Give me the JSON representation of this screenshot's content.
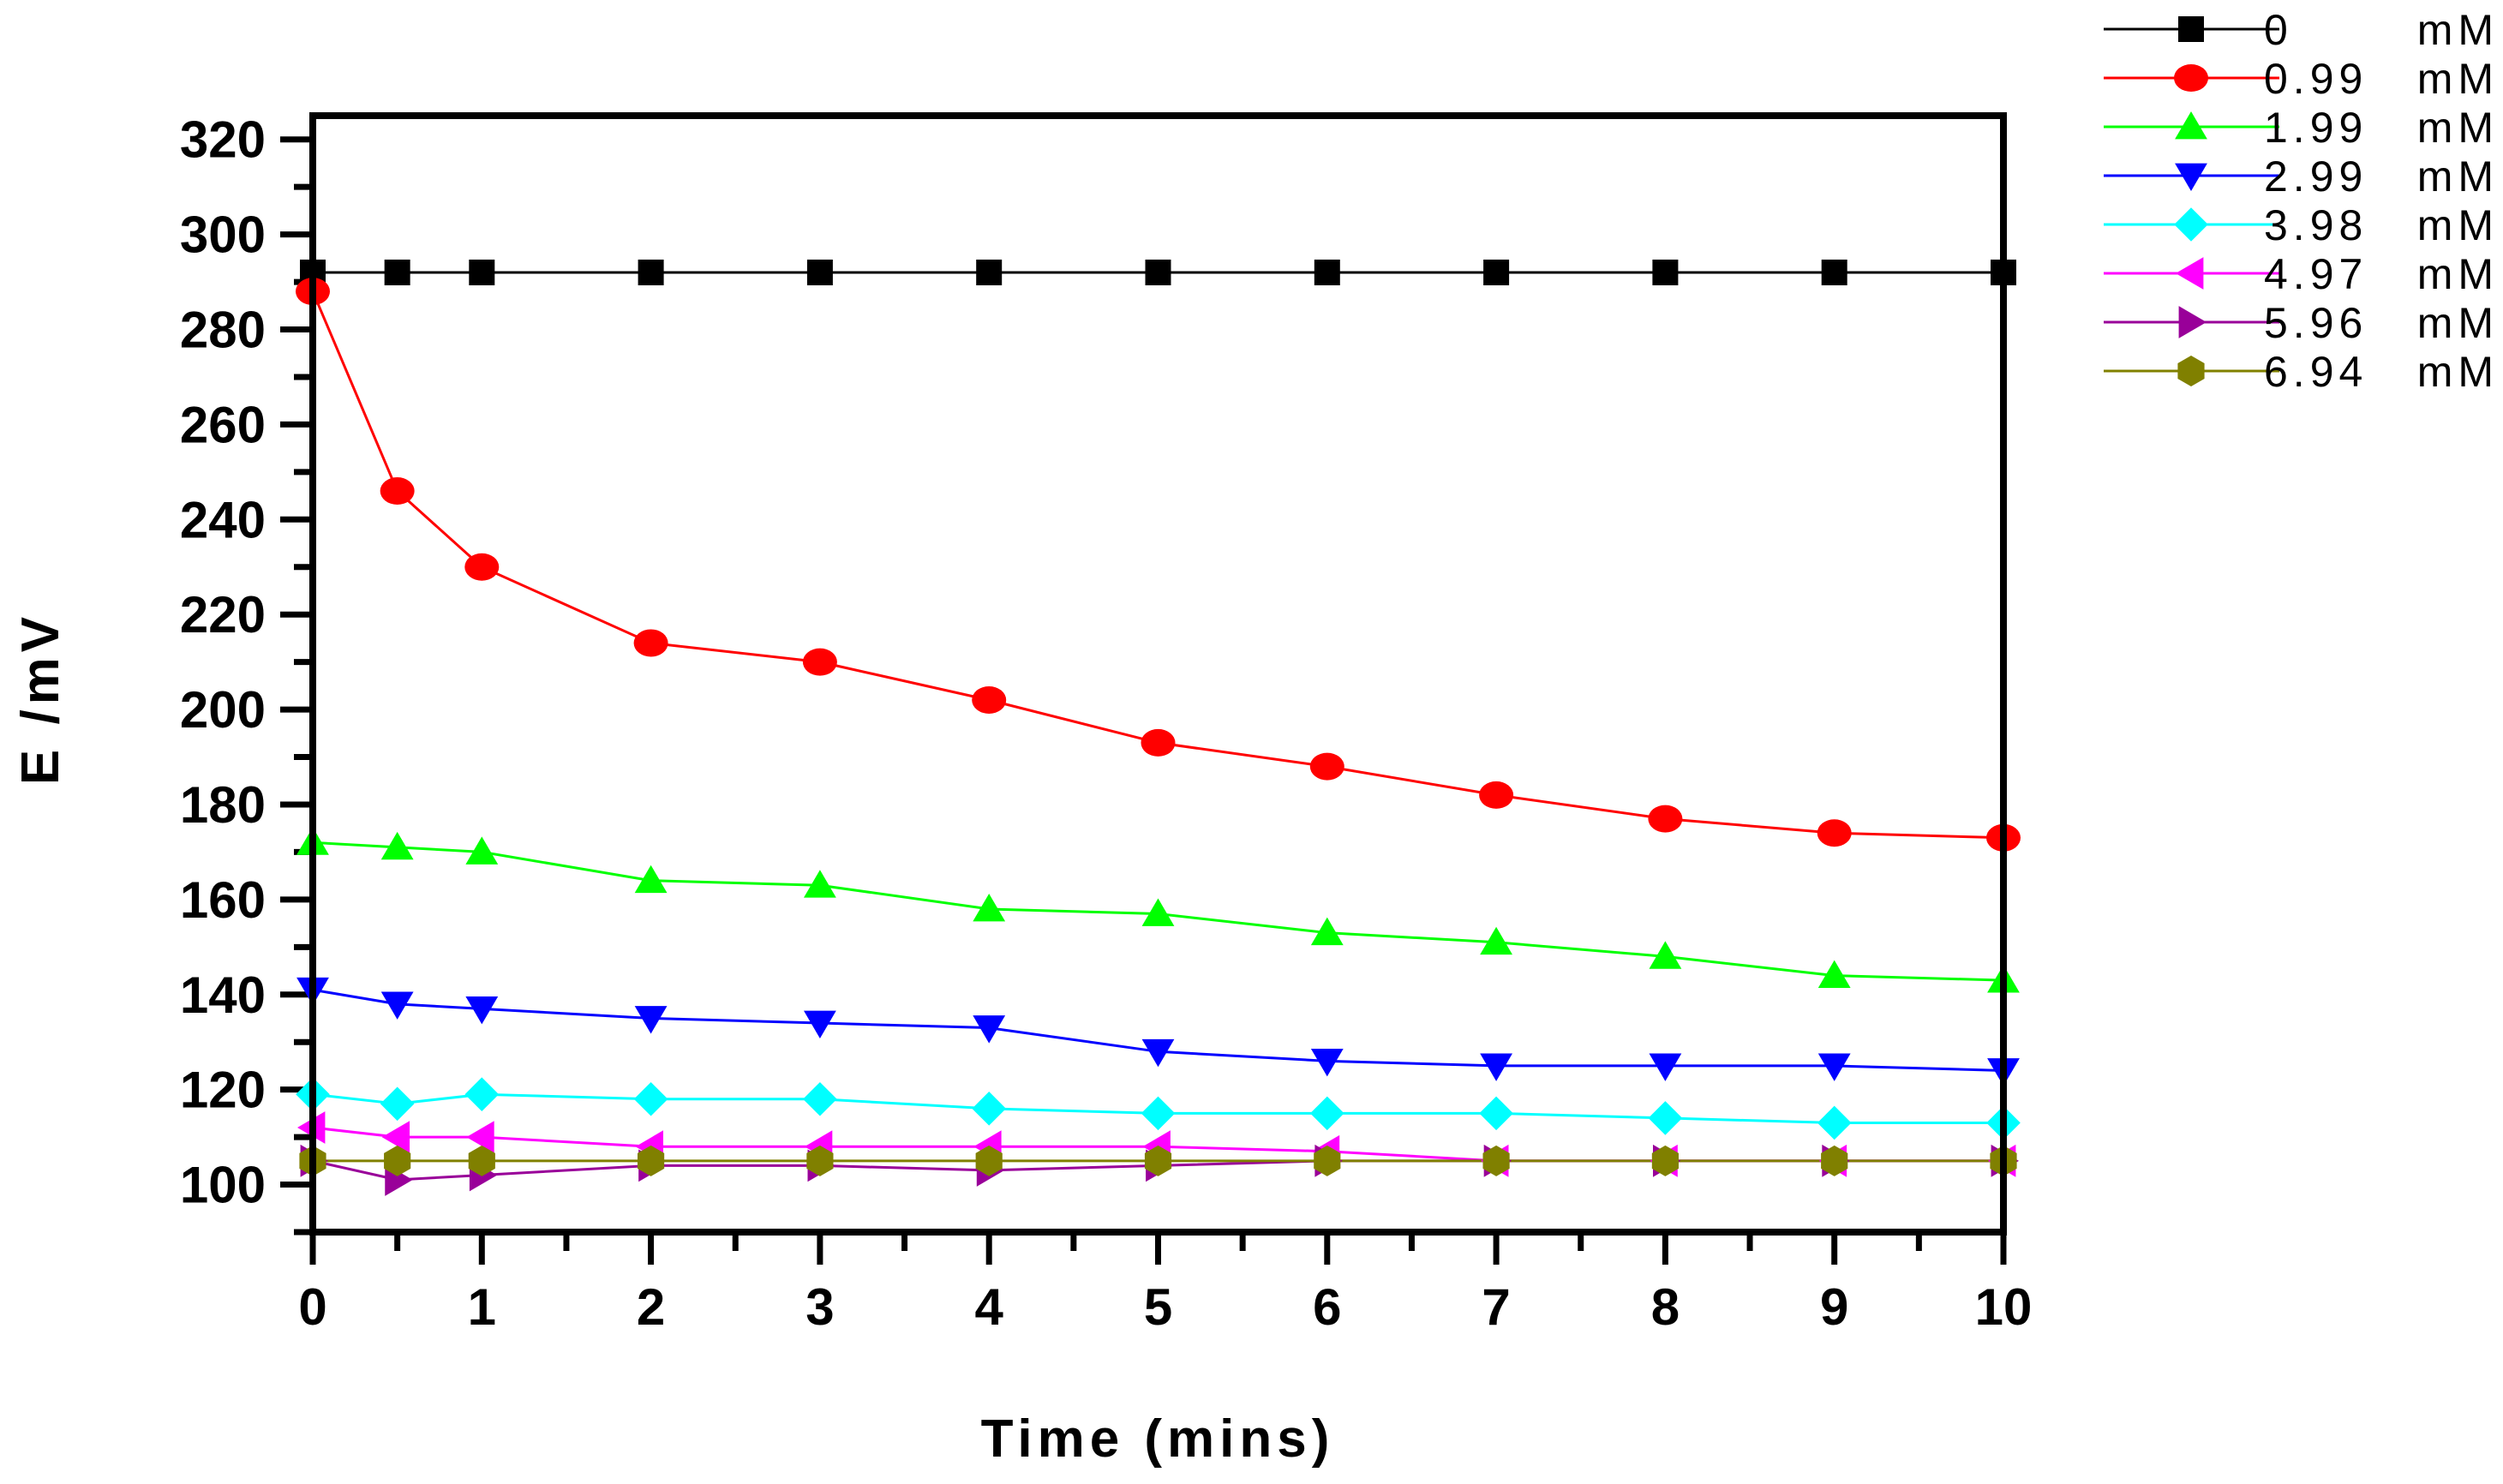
{
  "chart_data": {
    "type": "line",
    "title": "",
    "xlabel": "Time (mins)",
    "ylabel": "E /mV",
    "xlim": [
      0,
      10
    ],
    "ylim": [
      90,
      325
    ],
    "xticks": [
      0,
      1,
      2,
      3,
      4,
      5,
      6,
      7,
      8,
      9,
      10
    ],
    "yticks": [
      100,
      120,
      140,
      160,
      180,
      200,
      220,
      240,
      260,
      280,
      300,
      320
    ],
    "x": [
      0,
      0.5,
      1,
      2,
      3,
      4,
      5,
      6,
      7,
      8,
      9,
      10
    ],
    "legend_position": "top-right outside",
    "series": [
      {
        "name": "0 mM",
        "label_value": "0",
        "label_unit": "mM",
        "color": "#000000",
        "marker": "square",
        "values": [
          292,
          292,
          292,
          292,
          292,
          292,
          292,
          292,
          292,
          292,
          292,
          292
        ]
      },
      {
        "name": "0.99 mM",
        "label_value": "0.99",
        "label_unit": "mM",
        "color": "#ff0000",
        "marker": "circle",
        "values": [
          288,
          246,
          230,
          214,
          210,
          202,
          193,
          188,
          182,
          177,
          174,
          173
        ]
      },
      {
        "name": "1.99 mM",
        "label_value": "1.99",
        "label_unit": "mM",
        "color": "#00ff00",
        "marker": "triangle-up",
        "values": [
          172,
          171,
          170,
          164,
          163,
          158,
          157,
          153,
          151,
          148,
          144,
          143
        ]
      },
      {
        "name": "2.99 mM",
        "label_value": "2.99",
        "label_unit": "mM",
        "color": "#0000ff",
        "marker": "triangle-down",
        "values": [
          141,
          138,
          137,
          135,
          134,
          133,
          128,
          126,
          125,
          125,
          125,
          124
        ]
      },
      {
        "name": "3.98 mM",
        "label_value": "3.98",
        "label_unit": "mM",
        "color": "#00ffff",
        "marker": "diamond",
        "values": [
          119,
          117,
          119,
          118,
          118,
          116,
          115,
          115,
          115,
          114,
          113,
          113
        ]
      },
      {
        "name": "4.97 mM",
        "label_value": "4.97",
        "label_unit": "mM",
        "color": "#ff00ff",
        "marker": "triangle-left",
        "values": [
          112,
          110,
          110,
          108,
          108,
          108,
          108,
          107,
          105,
          105,
          105,
          105
        ]
      },
      {
        "name": "5.96 mM",
        "label_value": "5.96",
        "label_unit": "mM",
        "color": "#990099",
        "marker": "triangle-right",
        "values": [
          105,
          101,
          102,
          104,
          104,
          103,
          104,
          105,
          105,
          105,
          105,
          105
        ]
      },
      {
        "name": "6.94 mM",
        "label_value": "6.94",
        "label_unit": "mM",
        "color": "#808000",
        "marker": "hexagon",
        "values": [
          105,
          105,
          105,
          105,
          105,
          105,
          105,
          105,
          105,
          105,
          105,
          105
        ]
      }
    ]
  }
}
